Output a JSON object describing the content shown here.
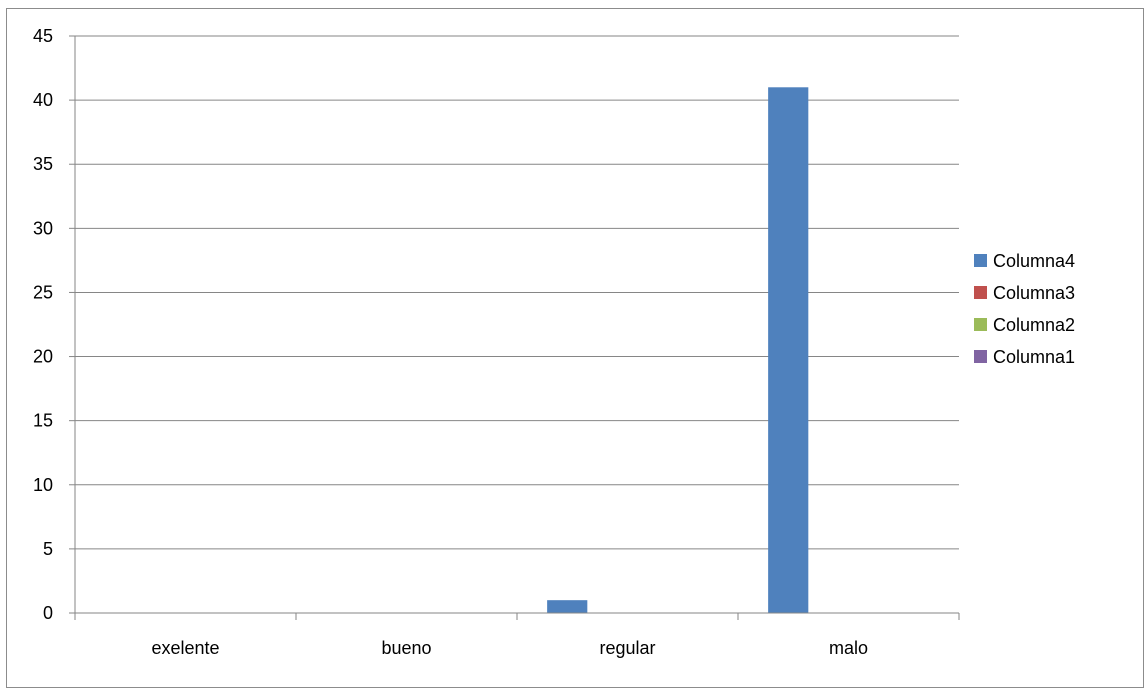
{
  "chart_data": {
    "type": "bar",
    "title": "",
    "xlabel": "",
    "ylabel": "",
    "categories": [
      "exelente",
      "bueno",
      "regular",
      "malo"
    ],
    "ylim": [
      0,
      45
    ],
    "yticks": [
      0,
      5,
      10,
      15,
      20,
      25,
      30,
      35,
      40,
      45
    ],
    "grid": true,
    "legend_position": "right",
    "series": [
      {
        "name": "Columna4",
        "color": "#4f81bd",
        "values": [
          0,
          0,
          1,
          41
        ]
      },
      {
        "name": "Columna3",
        "color": "#c0504d",
        "values": [
          0,
          0,
          0,
          0
        ]
      },
      {
        "name": "Columna2",
        "color": "#9bbb59",
        "values": [
          0,
          0,
          0,
          0
        ]
      },
      {
        "name": "Columna1",
        "color": "#8064a2",
        "values": [
          0,
          0,
          0,
          0
        ]
      }
    ]
  }
}
